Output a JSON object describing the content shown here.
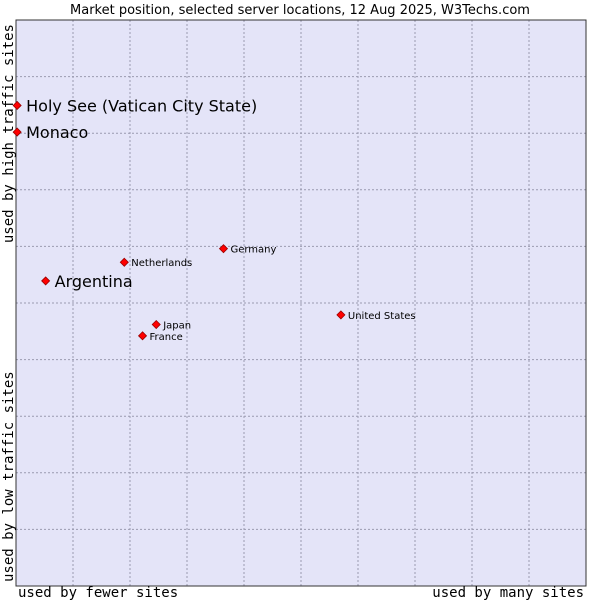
{
  "chart_data": {
    "type": "scatter",
    "title": "Market position, selected server locations, 12 Aug 2025, W3Techs.com",
    "xlabel_left": "used by fewer sites",
    "xlabel_right": "used by many sites",
    "ylabel_bottom": "used by low traffic sites",
    "ylabel_top": "used by high traffic sites",
    "xlim": [
      0,
      100
    ],
    "ylim": [
      0,
      100
    ],
    "grid": true,
    "colors": {
      "plot_bg": "#e4e4f8",
      "grid": "#9a9ab0",
      "marker": "#ff0000",
      "marker_edge": "#990000",
      "frame": "#333333"
    },
    "points": [
      {
        "name": "Holy See (Vatican City State)",
        "x": 0.2,
        "y": 84.9,
        "emphasized": true
      },
      {
        "name": "Monaco",
        "x": 0.2,
        "y": 80.2,
        "emphasized": true
      },
      {
        "name": "Germany",
        "x": 36.4,
        "y": 59.6,
        "emphasized": false
      },
      {
        "name": "Netherlands",
        "x": 19.0,
        "y": 57.2,
        "emphasized": false
      },
      {
        "name": "Argentina",
        "x": 5.2,
        "y": 53.9,
        "emphasized": true
      },
      {
        "name": "United States",
        "x": 57.0,
        "y": 47.9,
        "emphasized": false
      },
      {
        "name": "Japan",
        "x": 24.6,
        "y": 46.2,
        "emphasized": false
      },
      {
        "name": "France",
        "x": 22.2,
        "y": 44.2,
        "emphasized": false
      }
    ]
  }
}
